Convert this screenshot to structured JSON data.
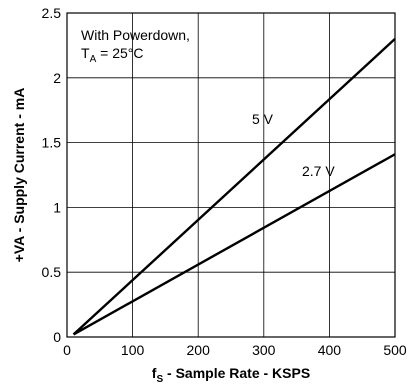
{
  "chart_data": {
    "type": "line",
    "title": "",
    "xlabel": {
      "main": "f",
      "sub": "S",
      "rest": " - Sample Rate - KSPS"
    },
    "ylabel": "+VA - Supply Current - mA",
    "xlim": [
      0,
      500
    ],
    "ylim": [
      0,
      2.5
    ],
    "xticks": [
      0,
      100,
      200,
      300,
      400,
      500
    ],
    "yticks": [
      0,
      0.5,
      1,
      1.5,
      2,
      2.5
    ],
    "xtick_labels": [
      "0",
      "100",
      "200",
      "300",
      "400",
      "500"
    ],
    "ytick_labels": [
      "0",
      "0.5",
      "1",
      "1.5",
      "2",
      "2.5"
    ],
    "grid": true,
    "annotation": {
      "line1": "With Powerdown,",
      "line2_main": "T",
      "line2_sub": "A",
      "line2_rest": " = 25°C"
    },
    "series": [
      {
        "name": "5 V",
        "x": [
          10,
          500
        ],
        "y": [
          0.02,
          2.3
        ]
      },
      {
        "name": "2.7 V",
        "x": [
          10,
          500
        ],
        "y": [
          0.02,
          1.41
        ]
      }
    ]
  }
}
